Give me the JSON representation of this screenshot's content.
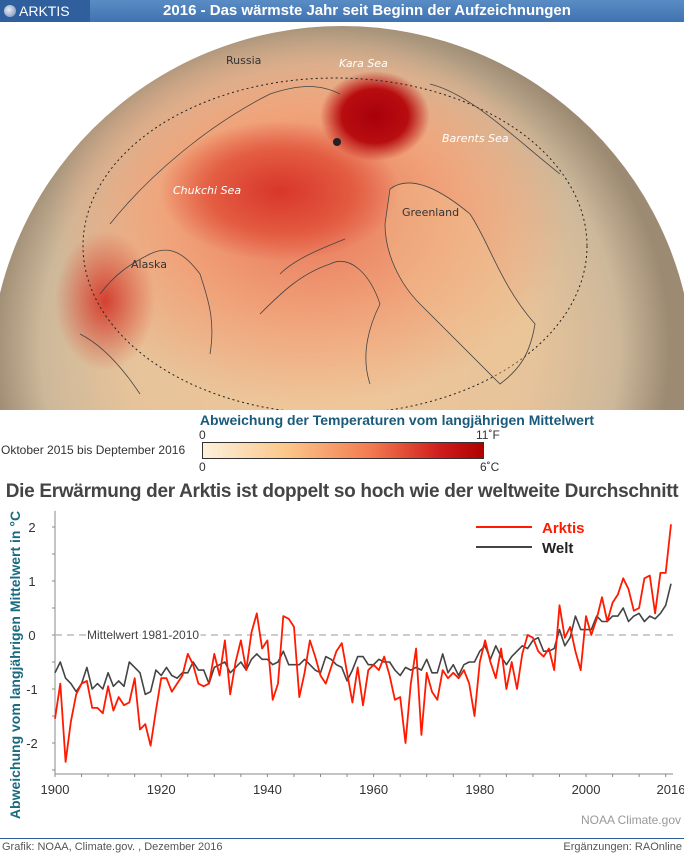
{
  "header": {
    "section": "ARKTIS",
    "title": "2016 - Das wärmste Jahr seit Beginn der Aufzeichnungen",
    "icon": "globe-icon"
  },
  "map": {
    "labels": {
      "russia": "Russia",
      "kara": "Kara Sea",
      "barents": "Barents Sea",
      "chukchi": "Chukchi Sea",
      "greenland": "Greenland",
      "alaska": "Alaska"
    }
  },
  "legend": {
    "title": "Abweichung der Temperaturen vom langjährigen Mittelwert",
    "period": "Oktober 2015 bis Deptember 2016",
    "f_min": "0",
    "f_max": "11˚F",
    "c_min": "0",
    "c_max": "6˚C",
    "colors": [
      "#fdf1dc",
      "#fbc68a",
      "#f37a50",
      "#cf1b1b",
      "#b00000"
    ]
  },
  "chart_data": {
    "type": "line",
    "title": "Die Erwärmung der Arktis ist doppelt so hoch wie der weltweite Durchschnitt",
    "xlabel": "",
    "ylabel": "Abweichung vom langjährigen Mittelwert in °C",
    "xlim": [
      1900,
      2016
    ],
    "ylim": [
      -2.5,
      2.3
    ],
    "xticks": [
      "1900",
      "1920",
      "1940",
      "1960",
      "1980",
      "2000",
      "2016"
    ],
    "yticks": [
      "2",
      "1",
      "0",
      "-1",
      "-2"
    ],
    "reference_line": {
      "value": 0,
      "label": "Mittelwert 1981-2010"
    },
    "legend_position": "top-right",
    "x_start": 1900,
    "series": [
      {
        "name": "Arktis",
        "color": "#ff1a00",
        "values": [
          -1.55,
          -0.9,
          -2.35,
          -1.6,
          -1.1,
          -0.9,
          -0.85,
          -1.35,
          -1.35,
          -1.45,
          -0.95,
          -1.4,
          -1.15,
          -1.3,
          -1.25,
          -0.8,
          -1.75,
          -1.65,
          -2.05,
          -1.4,
          -0.8,
          -0.8,
          -1.05,
          -0.9,
          -0.75,
          -0.35,
          -0.55,
          -0.9,
          -0.95,
          -0.9,
          -0.35,
          -0.75,
          -0.1,
          -1.1,
          -0.5,
          -0.1,
          -0.65,
          0.05,
          0.4,
          -0.25,
          -0.1,
          -1.2,
          -0.9,
          0.35,
          0.3,
          0.15,
          -1.15,
          -0.7,
          -0.1,
          -0.4,
          -0.75,
          -0.9,
          -0.6,
          -0.3,
          -0.15,
          -0.7,
          -1.25,
          -0.6,
          -1.3,
          -0.65,
          -0.55,
          -0.65,
          -0.4,
          -0.75,
          -1.2,
          -1.15,
          -2.0,
          -0.9,
          -0.25,
          -1.85,
          -0.7,
          -1.05,
          -1.2,
          -0.65,
          -0.8,
          -0.7,
          -0.8,
          -0.65,
          -0.9,
          -1.5,
          -0.5,
          -0.1,
          -0.5,
          -0.8,
          -0.25,
          -1.0,
          -0.5,
          -1.0,
          -0.35,
          0.0,
          -0.05,
          -0.3,
          -0.4,
          -0.25,
          -0.65,
          0.55,
          -0.05,
          0.15,
          -0.3,
          -0.65,
          0.35,
          0.0,
          0.3,
          0.7,
          0.25,
          0.6,
          0.75,
          1.05,
          0.85,
          0.45,
          0.5,
          1.05,
          1.1,
          0.4,
          1.15,
          1.15,
          2.05
        ]
      },
      {
        "name": "Welt",
        "color": "#444444",
        "values": [
          -0.7,
          -0.5,
          -0.8,
          -0.9,
          -1.05,
          -0.9,
          -0.6,
          -1.0,
          -0.9,
          -1.0,
          -0.7,
          -0.95,
          -0.85,
          -0.95,
          -0.5,
          -0.6,
          -0.7,
          -1.1,
          -1.05,
          -0.65,
          -0.75,
          -0.6,
          -0.75,
          -0.8,
          -0.7,
          -0.7,
          -0.5,
          -0.65,
          -0.65,
          -0.9,
          -0.6,
          -0.55,
          -0.5,
          -0.7,
          -0.6,
          -0.5,
          -0.65,
          -0.45,
          -0.35,
          -0.45,
          -0.45,
          -0.55,
          -0.5,
          -0.3,
          -0.55,
          -0.55,
          -0.55,
          -0.45,
          -0.55,
          -0.65,
          -0.7,
          -0.4,
          -0.45,
          -0.55,
          -0.6,
          -0.85,
          -0.65,
          -0.4,
          -0.4,
          -0.55,
          -0.55,
          -0.45,
          -0.5,
          -0.5,
          -0.65,
          -0.75,
          -0.6,
          -0.65,
          -0.6,
          -0.65,
          -0.45,
          -0.7,
          -0.7,
          -0.35,
          -0.7,
          -0.55,
          -0.75,
          -0.55,
          -0.5,
          -0.5,
          -0.3,
          -0.2,
          -0.45,
          -0.2,
          -0.4,
          -0.55,
          -0.4,
          -0.3,
          -0.2,
          -0.25,
          -0.1,
          -0.05,
          -0.3,
          -0.3,
          -0.25,
          0.1,
          -0.2,
          -0.05,
          0.35,
          0.1,
          0.1,
          0.1,
          0.35,
          0.25,
          0.25,
          0.35,
          0.35,
          0.5,
          0.25,
          0.35,
          0.4,
          0.25,
          0.35,
          0.3,
          0.4,
          0.55,
          0.95
        ]
      }
    ]
  },
  "credit": "NOAA Climate.gov",
  "footer": {
    "left": "Grafik: NOAA, Climate.gov. , Dezember 2016",
    "right": "Ergänzungen: RAOnline"
  }
}
